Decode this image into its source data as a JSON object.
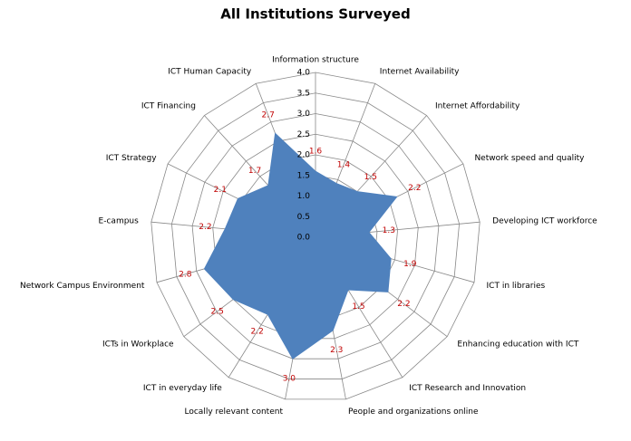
{
  "chart_data": {
    "type": "radar",
    "title": "All Institutions Surveyed",
    "categories": [
      "Information structure",
      "Internet Availability",
      "Internet  Affordability",
      "Network speed and quality",
      "Developing ICT workforce",
      "ICT in libraries",
      "Enhancing education with ICT",
      "ICT Research and  Innovation",
      "People and organizations  online",
      "Locally relevant content",
      "ICT in everyday life",
      "ICTs in Workplace",
      "Network Campus Environment",
      "E-campus",
      "ICT Strategy",
      "ICT Financing",
      "ICT Human Capacity"
    ],
    "series": [
      {
        "name": "All Institutions Surveyed",
        "color": "#4f81bd",
        "values": [
          1.6,
          1.4,
          1.5,
          2.2,
          1.3,
          1.9,
          2.2,
          1.5,
          2.3,
          3.0,
          2.2,
          2.5,
          2.8,
          2.2,
          2.1,
          1.7,
          2.7
        ],
        "value_labels": [
          "1.6",
          "1.4",
          "1.5",
          "2.2",
          "1.3",
          "1.9",
          "2.2",
          "1.5",
          "2.3",
          "3.0",
          "2.2",
          "2.5",
          "2.8",
          "2.2",
          "2.1",
          "1.7",
          "2.7"
        ]
      }
    ],
    "ylim": [
      0,
      4
    ],
    "yticks": [
      {
        "value": 0,
        "label": "0.0"
      },
      0.5,
      {
        "value": 1,
        "label": "1.0"
      },
      1.5,
      {
        "value": 2,
        "label": "2.0"
      },
      2.5,
      {
        "value": 3,
        "label": "3.0"
      },
      3.5,
      {
        "value": 4,
        "label": "4.0"
      }
    ],
    "label_color": "#c00000"
  }
}
